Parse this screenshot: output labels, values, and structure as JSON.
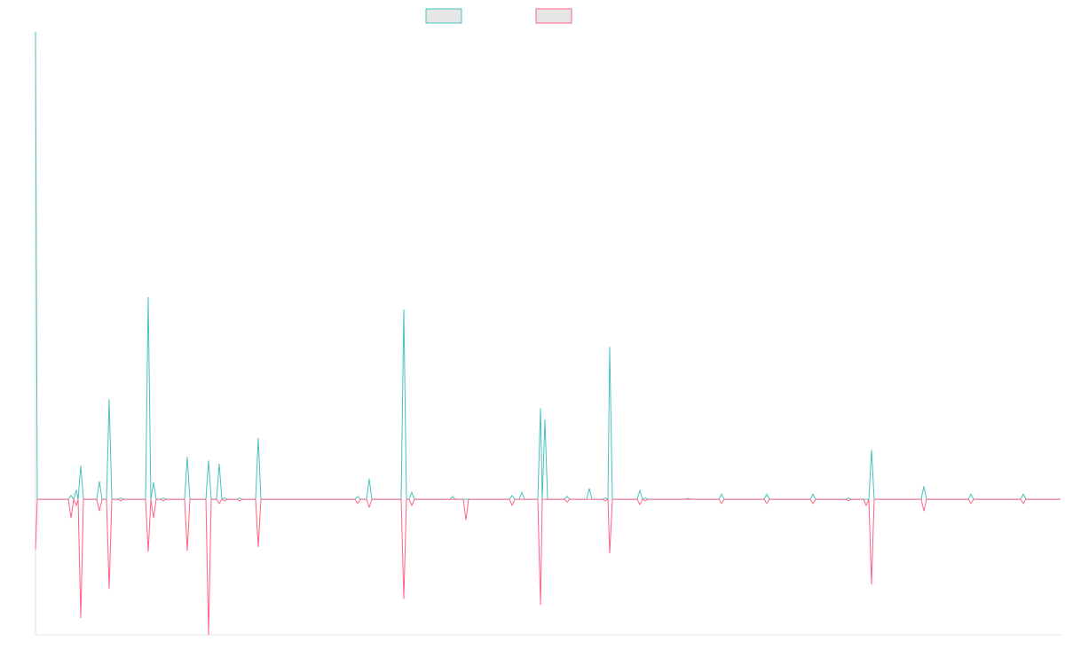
{
  "chart_data": {
    "type": "line",
    "x": [
      0,
      2,
      37,
      40,
      43,
      46,
      48,
      51,
      54,
      69,
      72,
      75,
      80,
      83,
      86,
      93,
      96,
      99,
      124,
      127,
      130,
      133,
      136,
      141,
      144,
      147,
      168,
      171,
      174,
      192,
      195,
      198,
      204,
      207,
      210,
      213,
      216,
      227,
      230,
      233,
      248,
      251,
      254,
      360,
      363,
      366,
      373,
      376,
      379,
      412,
      415,
      418,
      421,
      424,
      427,
      467,
      470,
      473,
      482,
      485,
      488,
      534,
      537,
      540,
      545,
      548,
      551,
      566,
      569,
      571,
      574,
      577,
      596,
      599,
      602,
      621,
      624,
      627,
      639,
      642,
      645,
      647,
      650,
      678,
      681,
      684,
      687,
      690,
      732,
      735,
      738,
      770,
      773,
      776,
      821,
      824,
      827,
      873,
      876,
      879,
      913,
      916,
      919,
      933,
      936,
      939,
      942,
      945,
      998,
      1001,
      1004,
      1051,
      1054,
      1057,
      1110,
      1113,
      1116,
      1155
    ],
    "xlim": [
      0,
      1155
    ],
    "ylim": [
      -29,
      100
    ],
    "series": [
      {
        "color": "#4bc0c0",
        "values": [
          100,
          0,
          0,
          0.8,
          0,
          2,
          0,
          7.2,
          0,
          0,
          3.8,
          0,
          0,
          21.4,
          0,
          0,
          0.3,
          0,
          0,
          43.3,
          0,
          3.6,
          0,
          0,
          0.3,
          0,
          0,
          9.1,
          0,
          0,
          8.3,
          0,
          0,
          7.6,
          0,
          0.3,
          0,
          0,
          0.3,
          0,
          0,
          13.1,
          0,
          0,
          0.6,
          0,
          0,
          4.4,
          0,
          0,
          40.6,
          0,
          0,
          1.5,
          0,
          0,
          0.6,
          0,
          0,
          0,
          0,
          0,
          0.8,
          0,
          0,
          1.5,
          0,
          0,
          19.5,
          0,
          17.1,
          0,
          0,
          0.6,
          0,
          0,
          2.3,
          0,
          0,
          0.3,
          0,
          32.6,
          0,
          0,
          1.9,
          0,
          0.3,
          0,
          0,
          0.2,
          0,
          0,
          1.1,
          0,
          0,
          1.1,
          0,
          0,
          1.1,
          0,
          0,
          0.3,
          0,
          0,
          0,
          0,
          10.6,
          0,
          0,
          2.8,
          0,
          0,
          1.1,
          0,
          0,
          1.1,
          0,
          0
        ]
      },
      {
        "color": "#ff6384",
        "values": [
          -10.8,
          0,
          0,
          -4,
          0,
          -1.3,
          0,
          -25.4,
          0,
          0,
          -2.5,
          0,
          0,
          -19.2,
          0,
          0,
          -0.3,
          0,
          0,
          -11.2,
          0,
          -4,
          0,
          0,
          -0.3,
          0,
          0,
          -11,
          0,
          0,
          -29,
          0,
          0,
          -0.9,
          0,
          -0.3,
          0,
          0,
          -0.3,
          0,
          0,
          -10.2,
          0,
          0,
          -0.9,
          0,
          0,
          -1.7,
          0,
          0,
          -21.3,
          0,
          0,
          -1.3,
          0,
          0,
          0,
          0,
          0,
          -4.4,
          0,
          0,
          -1.3,
          0,
          0,
          0,
          0,
          0,
          -22.6,
          0,
          0,
          0,
          0,
          -0.6,
          0,
          0,
          0,
          0,
          0,
          -0.3,
          0,
          -11.6,
          0,
          0,
          -1.1,
          0,
          -0.3,
          0,
          0,
          0,
          0,
          0,
          -0.9,
          0,
          0,
          -0.9,
          0,
          0,
          -0.9,
          0,
          0,
          -0.3,
          0,
          0,
          -1.3,
          0,
          -18.2,
          0,
          0,
          -2.5,
          0,
          0,
          -0.9,
          0,
          0,
          -0.9,
          0,
          0
        ]
      }
    ]
  }
}
